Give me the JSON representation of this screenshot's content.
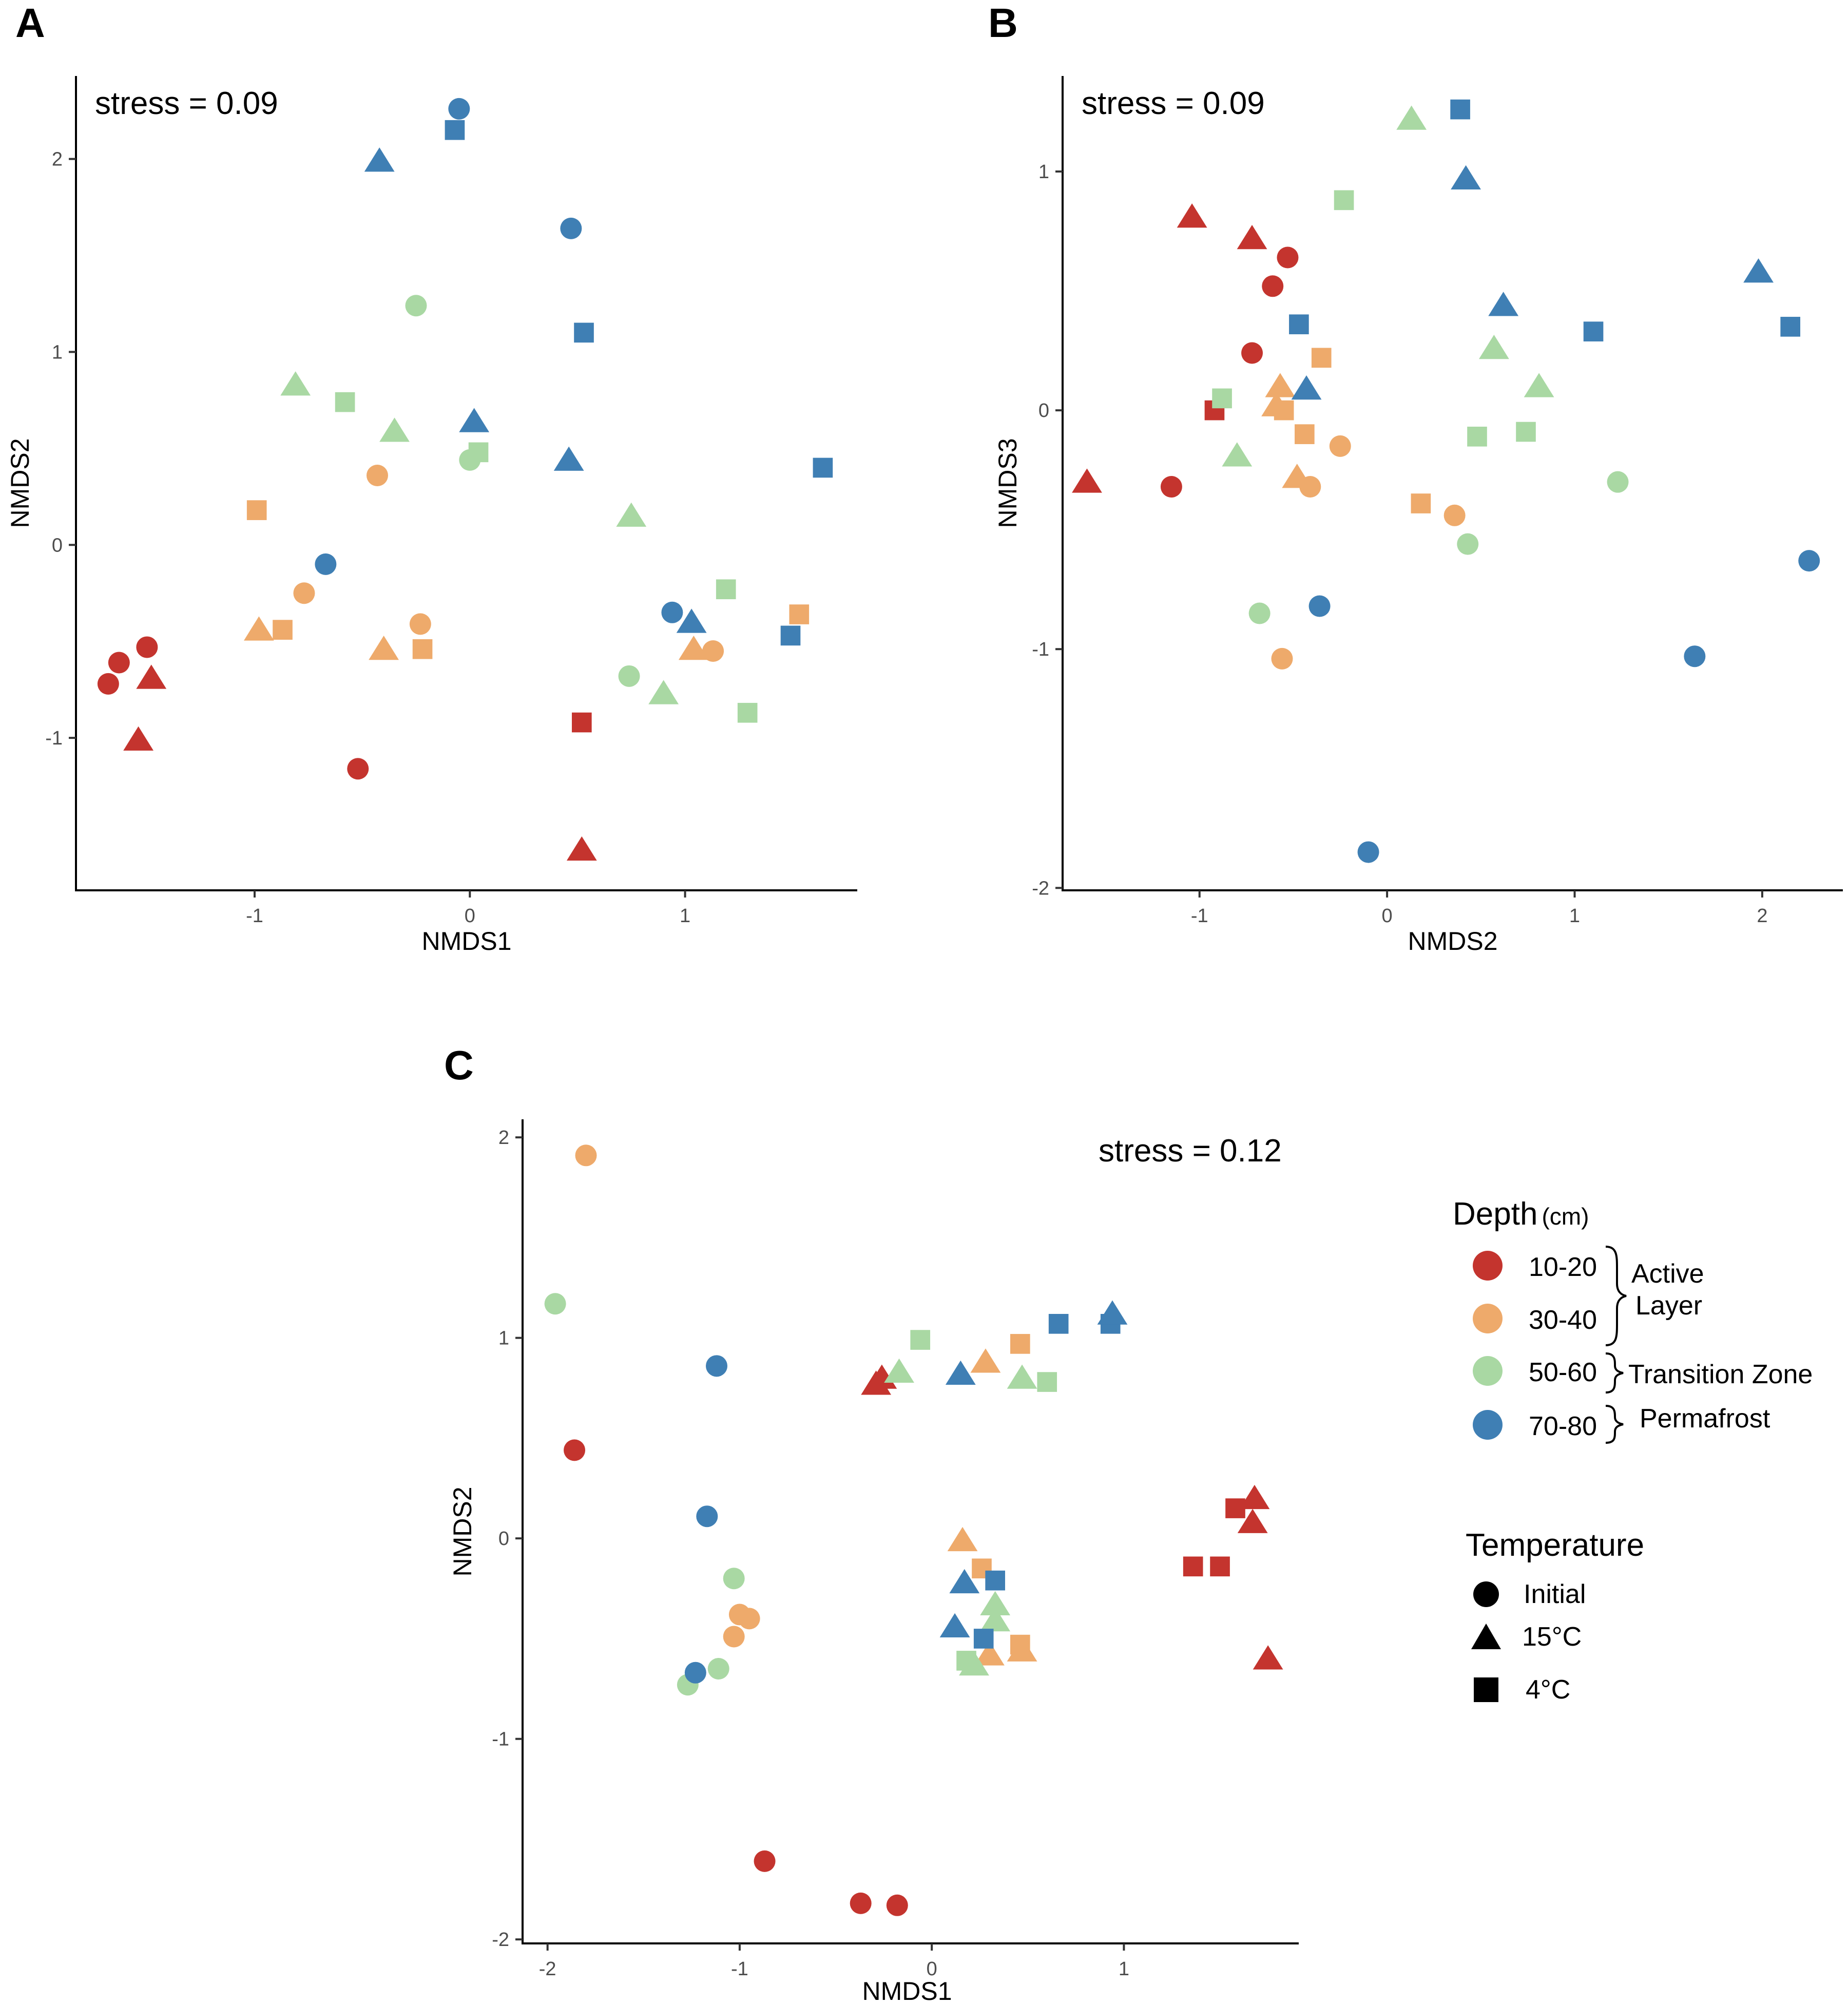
{
  "colors": {
    "10-20": "#c4342e",
    "30-40": "#eeaa6b",
    "50-60": "#a9d8a3",
    "70-80": "#3f7fb4"
  },
  "panels": [
    {
      "id": "A",
      "label": "A",
      "stress": "stress = 0.09"
    },
    {
      "id": "B",
      "label": "B",
      "stress": "stress = 0.09"
    },
    {
      "id": "C",
      "label": "C",
      "stress": "stress = 0.12"
    }
  ],
  "legend": {
    "depth_title": "Depth",
    "depth_unit": "(cm)",
    "depth_items": [
      {
        "label": "10-20",
        "key": "10-20"
      },
      {
        "label": "30-40",
        "key": "30-40"
      },
      {
        "label": "50-60",
        "key": "50-60"
      },
      {
        "label": "70-80",
        "key": "70-80"
      }
    ],
    "zones": {
      "active_line1": "Active",
      "active_line2": "Layer",
      "transition": "Transition Zone",
      "permafrost": "Permafrost"
    },
    "temperature_title": "Temperature",
    "temperature_items": [
      {
        "label": "Initial",
        "shape": "circle"
      },
      {
        "label": "15°C",
        "shape": "triangle"
      },
      {
        "label": "4°C",
        "shape": "square"
      }
    ]
  },
  "chart_data": [
    {
      "type": "scatter",
      "panel": "A",
      "title": "",
      "xlabel": "NMDS1",
      "ylabel": "NMDS2",
      "xlim": [
        -1.83,
        1.8
      ],
      "ylim": [
        -1.79,
        2.43
      ],
      "xticks": [
        -1,
        0,
        1
      ],
      "yticks": [
        -1,
        0,
        1,
        2
      ],
      "annotation": "stress = 0.09",
      "points": [
        {
          "x": -1.68,
          "y": -0.72,
          "depth": "10-20",
          "temp": "Initial"
        },
        {
          "x": -1.63,
          "y": -0.61,
          "depth": "10-20",
          "temp": "Initial"
        },
        {
          "x": -1.5,
          "y": -0.53,
          "depth": "10-20",
          "temp": "Initial"
        },
        {
          "x": -1.48,
          "y": -0.69,
          "depth": "10-20",
          "temp": "15°C"
        },
        {
          "x": -1.54,
          "y": -1.01,
          "depth": "10-20",
          "temp": "15°C"
        },
        {
          "x": -0.52,
          "y": -1.16,
          "depth": "10-20",
          "temp": "Initial"
        },
        {
          "x": 0.52,
          "y": -0.92,
          "depth": "10-20",
          "temp": "4°C"
        },
        {
          "x": 0.52,
          "y": -1.58,
          "depth": "10-20",
          "temp": "15°C"
        },
        {
          "x": -0.99,
          "y": 0.18,
          "depth": "30-40",
          "temp": "4°C"
        },
        {
          "x": -0.43,
          "y": 0.36,
          "depth": "30-40",
          "temp": "Initial"
        },
        {
          "x": -0.77,
          "y": -0.25,
          "depth": "30-40",
          "temp": "Initial"
        },
        {
          "x": -0.98,
          "y": -0.44,
          "depth": "30-40",
          "temp": "15°C"
        },
        {
          "x": -0.87,
          "y": -0.44,
          "depth": "30-40",
          "temp": "4°C"
        },
        {
          "x": -0.4,
          "y": -0.54,
          "depth": "30-40",
          "temp": "15°C"
        },
        {
          "x": -0.23,
          "y": -0.41,
          "depth": "30-40",
          "temp": "Initial"
        },
        {
          "x": -0.22,
          "y": -0.54,
          "depth": "30-40",
          "temp": "4°C"
        },
        {
          "x": 1.04,
          "y": -0.54,
          "depth": "30-40",
          "temp": "15°C"
        },
        {
          "x": 1.13,
          "y": -0.55,
          "depth": "30-40",
          "temp": "Initial"
        },
        {
          "x": 1.53,
          "y": -0.36,
          "depth": "30-40",
          "temp": "4°C"
        },
        {
          "x": -0.81,
          "y": 0.83,
          "depth": "50-60",
          "temp": "15°C"
        },
        {
          "x": -0.58,
          "y": 0.74,
          "depth": "50-60",
          "temp": "4°C"
        },
        {
          "x": -0.35,
          "y": 0.59,
          "depth": "50-60",
          "temp": "15°C"
        },
        {
          "x": -0.25,
          "y": 1.24,
          "depth": "50-60",
          "temp": "Initial"
        },
        {
          "x": 0.0,
          "y": 0.44,
          "depth": "50-60",
          "temp": "Initial"
        },
        {
          "x": 0.04,
          "y": 0.48,
          "depth": "50-60",
          "temp": "4°C"
        },
        {
          "x": 0.75,
          "y": 0.15,
          "depth": "50-60",
          "temp": "15°C"
        },
        {
          "x": 0.74,
          "y": -0.68,
          "depth": "50-60",
          "temp": "Initial"
        },
        {
          "x": 0.9,
          "y": -0.77,
          "depth": "50-60",
          "temp": "15°C"
        },
        {
          "x": 1.19,
          "y": -0.23,
          "depth": "50-60",
          "temp": "4°C"
        },
        {
          "x": 1.29,
          "y": -0.87,
          "depth": "50-60",
          "temp": "4°C"
        },
        {
          "x": -0.05,
          "y": 2.26,
          "depth": "70-80",
          "temp": "Initial"
        },
        {
          "x": -0.07,
          "y": 2.15,
          "depth": "70-80",
          "temp": "4°C"
        },
        {
          "x": -0.42,
          "y": 1.99,
          "depth": "70-80",
          "temp": "15°C"
        },
        {
          "x": 0.47,
          "y": 1.64,
          "depth": "70-80",
          "temp": "Initial"
        },
        {
          "x": 0.53,
          "y": 1.1,
          "depth": "70-80",
          "temp": "4°C"
        },
        {
          "x": 0.02,
          "y": 0.64,
          "depth": "70-80",
          "temp": "15°C"
        },
        {
          "x": 0.46,
          "y": 0.44,
          "depth": "70-80",
          "temp": "15°C"
        },
        {
          "x": 1.64,
          "y": 0.4,
          "depth": "70-80",
          "temp": "4°C"
        },
        {
          "x": -0.67,
          "y": -0.1,
          "depth": "70-80",
          "temp": "Initial"
        },
        {
          "x": 0.94,
          "y": -0.35,
          "depth": "70-80",
          "temp": "Initial"
        },
        {
          "x": 1.03,
          "y": -0.4,
          "depth": "70-80",
          "temp": "15°C"
        },
        {
          "x": 1.49,
          "y": -0.47,
          "depth": "70-80",
          "temp": "4°C"
        }
      ]
    },
    {
      "type": "scatter",
      "panel": "B",
      "title": "",
      "xlabel": "NMDS2",
      "ylabel": "NMDS3",
      "xlim": [
        -1.73,
        2.43
      ],
      "ylim": [
        -2.01,
        1.4
      ],
      "xticks": [
        -1,
        0,
        1,
        2
      ],
      "yticks": [
        -2,
        -1,
        0,
        1
      ],
      "annotation": "stress = 0.09",
      "points": [
        {
          "x": -1.6,
          "y": -0.3,
          "depth": "10-20",
          "temp": "15°C"
        },
        {
          "x": -1.15,
          "y": -0.32,
          "depth": "10-20",
          "temp": "Initial"
        },
        {
          "x": -1.04,
          "y": 0.81,
          "depth": "10-20",
          "temp": "15°C"
        },
        {
          "x": -0.92,
          "y": 0.0,
          "depth": "10-20",
          "temp": "4°C"
        },
        {
          "x": -0.72,
          "y": 0.72,
          "depth": "10-20",
          "temp": "15°C"
        },
        {
          "x": -0.72,
          "y": 0.24,
          "depth": "10-20",
          "temp": "Initial"
        },
        {
          "x": -0.61,
          "y": 0.52,
          "depth": "10-20",
          "temp": "Initial"
        },
        {
          "x": -0.53,
          "y": 0.64,
          "depth": "10-20",
          "temp": "Initial"
        },
        {
          "x": -0.57,
          "y": 0.1,
          "depth": "30-40",
          "temp": "15°C"
        },
        {
          "x": -0.59,
          "y": 0.02,
          "depth": "30-40",
          "temp": "15°C"
        },
        {
          "x": -0.55,
          "y": 0.0,
          "depth": "30-40",
          "temp": "4°C"
        },
        {
          "x": -0.35,
          "y": 0.22,
          "depth": "30-40",
          "temp": "4°C"
        },
        {
          "x": -0.44,
          "y": -0.1,
          "depth": "30-40",
          "temp": "4°C"
        },
        {
          "x": -0.25,
          "y": -0.15,
          "depth": "30-40",
          "temp": "Initial"
        },
        {
          "x": -0.48,
          "y": -0.28,
          "depth": "30-40",
          "temp": "15°C"
        },
        {
          "x": -0.41,
          "y": -0.32,
          "depth": "30-40",
          "temp": "Initial"
        },
        {
          "x": 0.18,
          "y": -0.39,
          "depth": "30-40",
          "temp": "4°C"
        },
        {
          "x": 0.36,
          "y": -0.44,
          "depth": "30-40",
          "temp": "Initial"
        },
        {
          "x": -0.56,
          "y": -1.04,
          "depth": "30-40",
          "temp": "Initial"
        },
        {
          "x": 0.13,
          "y": 1.22,
          "depth": "50-60",
          "temp": "15°C"
        },
        {
          "x": -0.23,
          "y": 0.88,
          "depth": "50-60",
          "temp": "4°C"
        },
        {
          "x": -0.88,
          "y": 0.05,
          "depth": "50-60",
          "temp": "4°C"
        },
        {
          "x": -0.8,
          "y": -0.19,
          "depth": "50-60",
          "temp": "15°C"
        },
        {
          "x": 0.57,
          "y": 0.26,
          "depth": "50-60",
          "temp": "15°C"
        },
        {
          "x": 0.81,
          "y": 0.1,
          "depth": "50-60",
          "temp": "15°C"
        },
        {
          "x": 0.48,
          "y": -0.11,
          "depth": "50-60",
          "temp": "4°C"
        },
        {
          "x": 0.74,
          "y": -0.09,
          "depth": "50-60",
          "temp": "4°C"
        },
        {
          "x": 1.23,
          "y": -0.3,
          "depth": "50-60",
          "temp": "Initial"
        },
        {
          "x": 0.43,
          "y": -0.56,
          "depth": "50-60",
          "temp": "Initial"
        },
        {
          "x": -0.68,
          "y": -0.85,
          "depth": "50-60",
          "temp": "Initial"
        },
        {
          "x": 0.39,
          "y": 1.26,
          "depth": "70-80",
          "temp": "4°C"
        },
        {
          "x": 0.42,
          "y": 0.97,
          "depth": "70-80",
          "temp": "15°C"
        },
        {
          "x": -0.47,
          "y": 0.36,
          "depth": "70-80",
          "temp": "4°C"
        },
        {
          "x": -0.43,
          "y": 0.09,
          "depth": "70-80",
          "temp": "15°C"
        },
        {
          "x": 0.62,
          "y": 0.44,
          "depth": "70-80",
          "temp": "15°C"
        },
        {
          "x": 1.1,
          "y": 0.33,
          "depth": "70-80",
          "temp": "4°C"
        },
        {
          "x": 1.98,
          "y": 0.58,
          "depth": "70-80",
          "temp": "15°C"
        },
        {
          "x": 2.15,
          "y": 0.35,
          "depth": "70-80",
          "temp": "4°C"
        },
        {
          "x": 2.25,
          "y": -0.63,
          "depth": "70-80",
          "temp": "Initial"
        },
        {
          "x": 1.64,
          "y": -1.03,
          "depth": "70-80",
          "temp": "Initial"
        },
        {
          "x": -0.36,
          "y": -0.82,
          "depth": "70-80",
          "temp": "Initial"
        },
        {
          "x": -0.1,
          "y": -1.85,
          "depth": "70-80",
          "temp": "Initial"
        }
      ]
    },
    {
      "type": "scatter",
      "panel": "C",
      "title": "",
      "xlabel": "NMDS1",
      "ylabel": "NMDS2",
      "xlim": [
        -2.13,
        1.91
      ],
      "ylim": [
        -2.02,
        2.09
      ],
      "xticks": [
        -2,
        -1,
        0,
        1
      ],
      "yticks": [
        -2,
        -1,
        0,
        1,
        2
      ],
      "annotation": "stress = 0.12",
      "points": [
        {
          "x": -1.86,
          "y": 0.44,
          "depth": "10-20",
          "temp": "Initial"
        },
        {
          "x": -0.87,
          "y": -1.61,
          "depth": "10-20",
          "temp": "Initial"
        },
        {
          "x": -0.37,
          "y": -1.82,
          "depth": "10-20",
          "temp": "Initial"
        },
        {
          "x": -0.18,
          "y": -1.83,
          "depth": "10-20",
          "temp": "Initial"
        },
        {
          "x": -0.29,
          "y": 0.77,
          "depth": "10-20",
          "temp": "15°C"
        },
        {
          "x": -0.26,
          "y": 0.8,
          "depth": "10-20",
          "temp": "15°C"
        },
        {
          "x": 1.36,
          "y": -0.14,
          "depth": "10-20",
          "temp": "4°C"
        },
        {
          "x": 1.5,
          "y": -0.14,
          "depth": "10-20",
          "temp": "4°C"
        },
        {
          "x": 1.58,
          "y": 0.15,
          "depth": "10-20",
          "temp": "4°C"
        },
        {
          "x": 1.68,
          "y": 0.2,
          "depth": "10-20",
          "temp": "15°C"
        },
        {
          "x": 1.67,
          "y": 0.08,
          "depth": "10-20",
          "temp": "15°C"
        },
        {
          "x": 1.75,
          "y": -0.6,
          "depth": "10-20",
          "temp": "15°C"
        },
        {
          "x": -1.8,
          "y": 1.91,
          "depth": "30-40",
          "temp": "Initial"
        },
        {
          "x": -1.0,
          "y": -0.38,
          "depth": "30-40",
          "temp": "Initial"
        },
        {
          "x": -0.95,
          "y": -0.4,
          "depth": "30-40",
          "temp": "Initial"
        },
        {
          "x": -1.03,
          "y": -0.49,
          "depth": "30-40",
          "temp": "Initial"
        },
        {
          "x": 0.28,
          "y": 0.88,
          "depth": "30-40",
          "temp": "15°C"
        },
        {
          "x": 0.46,
          "y": 0.97,
          "depth": "30-40",
          "temp": "4°C"
        },
        {
          "x": 0.16,
          "y": -0.01,
          "depth": "30-40",
          "temp": "15°C"
        },
        {
          "x": 0.26,
          "y": -0.15,
          "depth": "30-40",
          "temp": "4°C"
        },
        {
          "x": 0.46,
          "y": -0.53,
          "depth": "30-40",
          "temp": "4°C"
        },
        {
          "x": 0.47,
          "y": -0.56,
          "depth": "30-40",
          "temp": "15°C"
        },
        {
          "x": 0.3,
          "y": -0.58,
          "depth": "30-40",
          "temp": "15°C"
        },
        {
          "x": -1.96,
          "y": 1.17,
          "depth": "50-60",
          "temp": "Initial"
        },
        {
          "x": -1.03,
          "y": -0.2,
          "depth": "50-60",
          "temp": "Initial"
        },
        {
          "x": -1.11,
          "y": -0.65,
          "depth": "50-60",
          "temp": "Initial"
        },
        {
          "x": -1.27,
          "y": -0.73,
          "depth": "50-60",
          "temp": "Initial"
        },
        {
          "x": -0.17,
          "y": 0.83,
          "depth": "50-60",
          "temp": "15°C"
        },
        {
          "x": -0.06,
          "y": 0.99,
          "depth": "50-60",
          "temp": "4°C"
        },
        {
          "x": 0.47,
          "y": 0.8,
          "depth": "50-60",
          "temp": "15°C"
        },
        {
          "x": 0.6,
          "y": 0.78,
          "depth": "50-60",
          "temp": "4°C"
        },
        {
          "x": 0.33,
          "y": -0.33,
          "depth": "50-60",
          "temp": "15°C"
        },
        {
          "x": 0.33,
          "y": -0.41,
          "depth": "50-60",
          "temp": "15°C"
        },
        {
          "x": 0.18,
          "y": -0.61,
          "depth": "50-60",
          "temp": "4°C"
        },
        {
          "x": 0.22,
          "y": -0.63,
          "depth": "50-60",
          "temp": "15°C"
        },
        {
          "x": -1.12,
          "y": 0.86,
          "depth": "70-80",
          "temp": "Initial"
        },
        {
          "x": -1.17,
          "y": 0.11,
          "depth": "70-80",
          "temp": "Initial"
        },
        {
          "x": -1.23,
          "y": -0.67,
          "depth": "70-80",
          "temp": "Initial"
        },
        {
          "x": 0.15,
          "y": 0.82,
          "depth": "70-80",
          "temp": "15°C"
        },
        {
          "x": 0.66,
          "y": 1.07,
          "depth": "70-80",
          "temp": "4°C"
        },
        {
          "x": 0.93,
          "y": 1.07,
          "depth": "70-80",
          "temp": "4°C"
        },
        {
          "x": 0.94,
          "y": 1.12,
          "depth": "70-80",
          "temp": "15°C"
        },
        {
          "x": 0.17,
          "y": -0.22,
          "depth": "70-80",
          "temp": "15°C"
        },
        {
          "x": 0.33,
          "y": -0.21,
          "depth": "70-80",
          "temp": "4°C"
        },
        {
          "x": 0.12,
          "y": -0.44,
          "depth": "70-80",
          "temp": "15°C"
        },
        {
          "x": 0.27,
          "y": -0.5,
          "depth": "70-80",
          "temp": "4°C"
        }
      ]
    }
  ]
}
